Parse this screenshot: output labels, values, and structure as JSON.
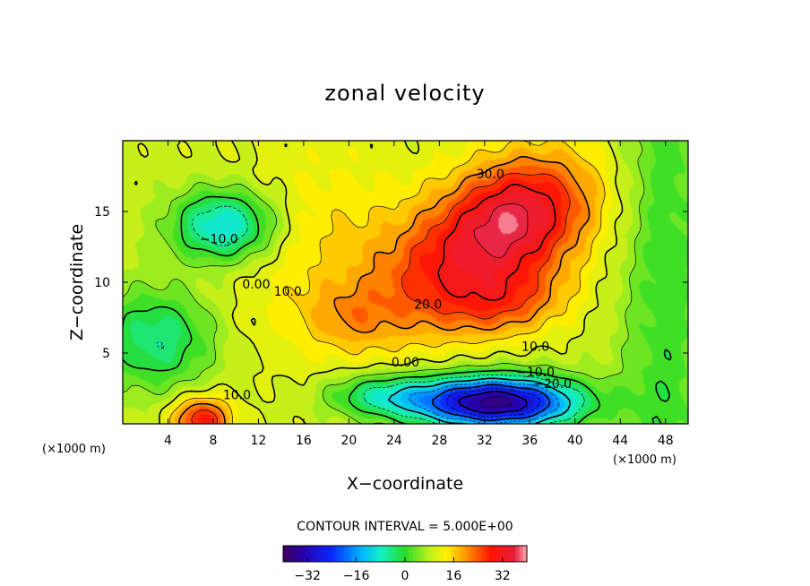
{
  "chart_data": {
    "type": "heatmap",
    "title": "zonal velocity",
    "xlabel": "X−coordinate",
    "ylabel": "Z−coordinate",
    "x_unit": "(×1000 m)",
    "y_unit": "(×1000 m)",
    "xlim": [
      0,
      50
    ],
    "ylim": [
      0,
      20
    ],
    "x_ticks": [
      4,
      8,
      12,
      16,
      20,
      24,
      28,
      32,
      36,
      40,
      44,
      48
    ],
    "y_ticks": [
      5,
      10,
      15
    ],
    "x_tick_labels": [
      "4",
      "8",
      "12",
      "16",
      "20",
      "24",
      "28",
      "32",
      "36",
      "40",
      "44",
      "48"
    ],
    "y_tick_labels": [
      "5",
      "10",
      "15"
    ],
    "contour_interval_text": "CONTOUR INTERVAL = 5.000E+00",
    "contour_interval": 5,
    "colorbar": {
      "range": [
        -40,
        40
      ],
      "ticks": [
        -32,
        -16,
        0,
        16,
        32
      ],
      "tick_labels": [
        "−32",
        "−16",
        "0",
        "16",
        "32"
      ]
    },
    "contour_labels": [
      {
        "text": "30.0",
        "x": 32.5,
        "z": 17.6
      },
      {
        "text": "20.0",
        "x": 27.0,
        "z": 8.4
      },
      {
        "text": "10.0",
        "x": 36.5,
        "z": 5.4
      },
      {
        "text": "0.00",
        "x": 25.0,
        "z": 4.3
      },
      {
        "text": "−10.0",
        "x": 36.5,
        "z": 3.6
      },
      {
        "text": "−20.0",
        "x": 38.0,
        "z": 2.8
      },
      {
        "text": "−10.0",
        "x": 8.5,
        "z": 13.0
      },
      {
        "text": "0.00",
        "x": 11.8,
        "z": 9.8
      },
      {
        "text": "10.0",
        "x": 14.6,
        "z": 9.3
      },
      {
        "text": "10.0",
        "x": 10.1,
        "z": 2.0
      }
    ],
    "features": [
      {
        "name": "strong eastward jet",
        "x": 33,
        "z": 14,
        "value": 32
      },
      {
        "name": "mid-level eastward core",
        "x": 33,
        "z": 8.5,
        "value": 28
      },
      {
        "name": "low-level westward core",
        "x": 34,
        "z": 1.5,
        "value": -38
      },
      {
        "name": "upper-left westward cell",
        "x": 9,
        "z": 14,
        "value": -12
      },
      {
        "name": "surface eastward cell",
        "x": 7,
        "z": 0.5,
        "value": 22
      }
    ]
  }
}
